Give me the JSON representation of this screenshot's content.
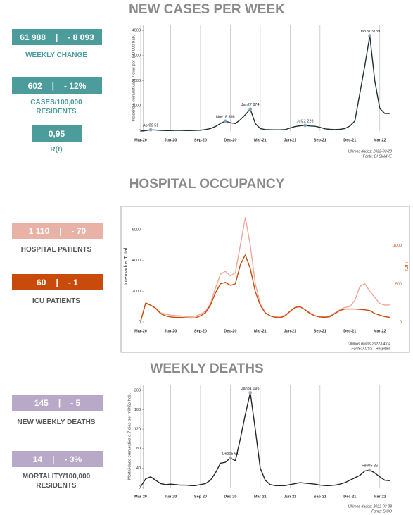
{
  "kpis": [
    {
      "value": "61 988",
      "change": "- 8 093",
      "label": [
        "WEEKLY CHANGE"
      ],
      "color": "#4d9c9c",
      "label_color": "#4d9c9c"
    },
    {
      "value": "602",
      "change": "- 12%",
      "label": [
        "CASES/100,000",
        "RESIDENTS"
      ],
      "color": "#4d9c9c",
      "label_color": "#4d9c9c"
    },
    {
      "value": "0,95",
      "label": [
        "R(t)"
      ],
      "color": "#4d9c9c",
      "label_color": "#4d9c9c"
    },
    {
      "value": "1 110",
      "change": "- 70",
      "label": [
        "HOSPITAL PATIENTS"
      ],
      "color": "#e9b2a6",
      "label_color": "#555555"
    },
    {
      "value": "60",
      "change": "- 1",
      "label": [
        "ICU PATIENTS"
      ],
      "color": "#c84b0c",
      "label_color": "#555555"
    },
    {
      "value": "145",
      "change": "- 5",
      "label": [
        "NEW WEEKLY DEATHS"
      ],
      "color": "#b9a9c9",
      "label_color": "#555555"
    },
    {
      "value": "14",
      "change": "- 3%",
      "label": [
        "MORTALITY/100,000",
        "RESIDENTS"
      ],
      "color": "#b9a9c9",
      "label_color": "#555555"
    }
  ],
  "chart_data": [
    {
      "type": "line",
      "title": "NEW CASES PER WEEK",
      "ylabel": "Incidência cumulativa a 7 dias por 100 000 hab.",
      "x": [
        0,
        0.5,
        1,
        1.5,
        2,
        2.5,
        3,
        3.5,
        4,
        4.5,
        5,
        5.5,
        6,
        6.5,
        7,
        7.5,
        8,
        8.5,
        9,
        9.5,
        10,
        10.5,
        11,
        11.5,
        12,
        12.5,
        13,
        13.5,
        14,
        14.5,
        15,
        15.5,
        16,
        16.5,
        17,
        17.5,
        18,
        18.5,
        19,
        19.5,
        20,
        20.5,
        21,
        21.5,
        22,
        22.5,
        23,
        23.5,
        24,
        24.5,
        25
      ],
      "xlim": [
        0,
        25.5
      ],
      "xticks": [
        {
          "value": 0,
          "label": "Mar-20"
        },
        {
          "value": 3,
          "label": "Jun-20"
        },
        {
          "value": 6,
          "label": "Sep-20"
        },
        {
          "value": 9,
          "label": "Dec-20"
        },
        {
          "value": 12,
          "label": "Mar-21"
        },
        {
          "value": 15,
          "label": "Jun-21"
        },
        {
          "value": 18,
          "label": "Sep-21"
        },
        {
          "value": 21,
          "label": "Dec-21"
        },
        {
          "value": 24,
          "label": "Mar-22"
        }
      ],
      "ylim": [
        0,
        4200
      ],
      "yticks": [
        0,
        1000,
        2000,
        3000,
        4000
      ],
      "grid": "x",
      "frame": false,
      "series": [
        {
          "color": "#1f3030",
          "values": [
            0,
            20,
            51,
            40,
            25,
            20,
            20,
            25,
            25,
            20,
            20,
            25,
            35,
            60,
            100,
            180,
            300,
            396,
            330,
            300,
            450,
            650,
            874,
            300,
            100,
            60,
            55,
            50,
            50,
            60,
            120,
            180,
            210,
            226,
            200,
            190,
            150,
            90,
            70,
            60,
            70,
            100,
            200,
            400,
            1500,
            2600,
            3789,
            2000,
            900,
            700,
            700
          ]
        }
      ],
      "annotations": [
        {
          "x": 1,
          "y": 51,
          "label": "Abr09 51"
        },
        {
          "x": 8.5,
          "y": 396,
          "label": "Nov18 396"
        },
        {
          "x": 11,
          "y": 874,
          "label": "Jan27 874"
        },
        {
          "x": 16.5,
          "y": 226,
          "label": "Jul22 226"
        },
        {
          "x": 23,
          "y": 3789,
          "label": "Jan28 3789"
        }
      ],
      "marker_color": "#7fa6bf",
      "footnotes": [
        "Últimos dados: 2022-03-28",
        "Fonte: BI SINAVE"
      ]
    },
    {
      "type": "line",
      "title": "HOSPITAL OCCUPANCY",
      "ylabel": "Internados Total",
      "y2label": "UCI",
      "x": [
        0,
        0.5,
        1,
        1.5,
        2,
        2.5,
        3,
        3.5,
        4,
        4.5,
        5,
        5.5,
        6,
        6.5,
        7,
        7.5,
        8,
        8.5,
        9,
        9.5,
        10,
        10.5,
        11,
        11.5,
        12,
        12.5,
        13,
        13.5,
        14,
        14.5,
        15,
        15.5,
        16,
        16.5,
        17,
        17.5,
        18,
        18.5,
        19,
        19.5,
        20,
        20.5,
        21,
        21.5,
        22,
        22.5,
        23,
        23.5,
        24,
        24.5,
        25
      ],
      "xlim": [
        0,
        25.5
      ],
      "xticks": [
        {
          "value": 0,
          "label": "Mar-20"
        },
        {
          "value": 3,
          "label": "Jun-20"
        },
        {
          "value": 6,
          "label": "Sep-20"
        },
        {
          "value": 9,
          "label": "Dec-20"
        },
        {
          "value": 12,
          "label": "Mar-21"
        },
        {
          "value": 15,
          "label": "Jun-21"
        },
        {
          "value": 18,
          "label": "Sep-21"
        },
        {
          "value": 21,
          "label": "Dec-21"
        },
        {
          "value": 24,
          "label": "Mar-22"
        }
      ],
      "ylim": [
        0,
        7200
      ],
      "yticks": [
        0,
        2000,
        4000,
        6000
      ],
      "y2lim": [
        0,
        1450
      ],
      "y2ticks": [
        0,
        500,
        1000
      ],
      "grid": false,
      "frame": true,
      "series": [
        {
          "color": "#eba89b",
          "values": [
            100,
            1200,
            1100,
            900,
            600,
            500,
            450,
            420,
            400,
            350,
            330,
            380,
            500,
            700,
            1200,
            2200,
            3100,
            3300,
            3000,
            3200,
            5000,
            6800,
            5000,
            2500,
            1200,
            600,
            400,
            350,
            330,
            450,
            700,
            950,
            1000,
            800,
            600,
            400,
            340,
            350,
            400,
            600,
            800,
            950,
            1000,
            1400,
            2300,
            2500,
            2000,
            1600,
            1200,
            1100,
            1110
          ]
        },
        {
          "color": "#c84b0c",
          "axis": "y2",
          "values": [
            10,
            250,
            220,
            180,
            110,
            80,
            65,
            60,
            60,
            55,
            50,
            55,
            80,
            120,
            220,
            380,
            500,
            520,
            480,
            500,
            750,
            880,
            700,
            400,
            220,
            120,
            80,
            60,
            55,
            80,
            140,
            190,
            200,
            160,
            110,
            80,
            65,
            60,
            70,
            110,
            150,
            170,
            170,
            170,
            165,
            160,
            150,
            110,
            90,
            70,
            60
          ]
        }
      ],
      "footnotes": [
        "Últimos dados 2022-04-04",
        "Fonte: ACSS | Hospitais"
      ]
    },
    {
      "type": "line",
      "title": "WEEKLY DEATHS",
      "ylabel": "Mortalidade cumulativa a 7 dias por milhão hab.",
      "x": [
        0,
        0.5,
        1,
        1.5,
        2,
        2.5,
        3,
        3.5,
        4,
        4.5,
        5,
        5.5,
        6,
        6.5,
        7,
        7.5,
        8,
        8.5,
        9,
        9.5,
        10,
        10.5,
        11,
        11.5,
        12,
        12.5,
        13,
        13.5,
        14,
        14.5,
        15,
        15.5,
        16,
        16.5,
        17,
        17.5,
        18,
        18.5,
        19,
        19.5,
        20,
        20.5,
        21,
        21.5,
        22,
        22.5,
        23,
        23.5,
        24,
        24.5,
        25
      ],
      "xlim": [
        0,
        25.5
      ],
      "xticks": [
        {
          "value": 0,
          "label": "Mar-20"
        },
        {
          "value": 3,
          "label": "Jun-20"
        },
        {
          "value": 6,
          "label": "Sep-20"
        },
        {
          "value": 9,
          "label": "Dec-20"
        },
        {
          "value": 12,
          "label": "Mar-21"
        },
        {
          "value": 15,
          "label": "Jun-21"
        },
        {
          "value": 18,
          "label": "Sep-21"
        },
        {
          "value": 21,
          "label": "Dec-21"
        },
        {
          "value": 24,
          "label": "Mar-22"
        }
      ],
      "ylim": [
        0,
        210
      ],
      "yticks": [
        0,
        40,
        80,
        120,
        160,
        200
      ],
      "grid": "x",
      "frame": false,
      "series": [
        {
          "color": "#262626",
          "values": [
            2,
            18,
            22,
            15,
            8,
            6,
            7,
            6,
            5,
            5,
            4,
            4,
            6,
            8,
            15,
            30,
            50,
            52,
            61,
            55,
            100,
            150,
            195,
            120,
            40,
            15,
            6,
            4,
            4,
            4,
            6,
            8,
            10,
            9,
            8,
            7,
            5,
            4,
            4,
            5,
            7,
            10,
            15,
            20,
            25,
            34,
            36,
            30,
            22,
            15,
            14
          ]
        }
      ],
      "annotations": [
        {
          "x": 11,
          "y": 195,
          "label": "Jan31 195"
        },
        {
          "x": 9,
          "y": 61,
          "label": "Dez15 61"
        },
        {
          "x": 23,
          "y": 36,
          "label": "Fev05 36"
        }
      ],
      "marker_color": "#9aa8c4",
      "footnotes": [
        "Últimos dados: 2022-03-28",
        "Fonte: SICO"
      ]
    }
  ]
}
